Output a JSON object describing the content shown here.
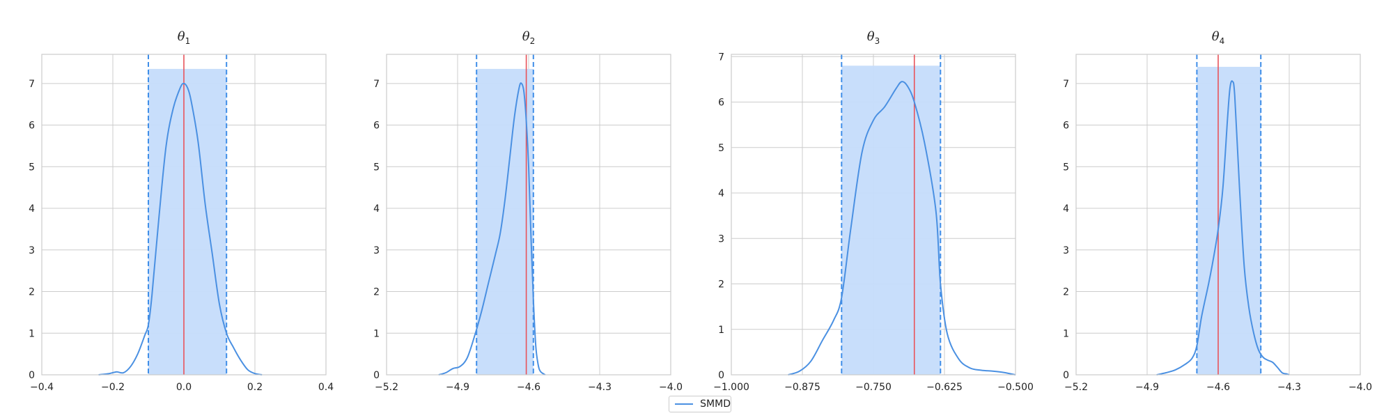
{
  "chart_data": [
    {
      "type": "line",
      "title_symbol": "θ",
      "title_sub": "1",
      "xlim": [
        -0.4,
        0.4
      ],
      "ylim": [
        0,
        7.7
      ],
      "xticks": [
        -0.4,
        -0.2,
        0.0,
        0.2,
        0.4
      ],
      "xtick_labels": [
        "−0.4",
        "−0.2",
        "0.0",
        "0.2",
        "0.4"
      ],
      "yticks": [
        0,
        1,
        2,
        3,
        4,
        5,
        6,
        7
      ],
      "ytick_labels": [
        "0",
        "1",
        "2",
        "3",
        "4",
        "5",
        "6",
        "7"
      ],
      "grid": true,
      "true_value": 0.0,
      "interval": [
        -0.1,
        0.12
      ],
      "interval_height": 7.35,
      "series": [
        {
          "name": "SMMD",
          "x": [
            -0.24,
            -0.21,
            -0.19,
            -0.17,
            -0.15,
            -0.13,
            -0.11,
            -0.1,
            -0.09,
            -0.07,
            -0.05,
            -0.03,
            -0.01,
            0.0,
            0.01,
            0.02,
            0.04,
            0.06,
            0.08,
            0.1,
            0.12,
            0.14,
            0.16,
            0.18,
            0.2,
            0.22
          ],
          "y": [
            0.0,
            0.03,
            0.07,
            0.05,
            0.2,
            0.5,
            0.95,
            1.2,
            1.9,
            3.8,
            5.5,
            6.4,
            6.9,
            7.0,
            6.9,
            6.6,
            5.6,
            4.1,
            2.9,
            1.7,
            1.0,
            0.65,
            0.35,
            0.12,
            0.03,
            0.0
          ]
        }
      ]
    },
    {
      "type": "line",
      "title_symbol": "θ",
      "title_sub": "2",
      "xlim": [
        -5.2,
        -4.0
      ],
      "ylim": [
        0,
        7.7
      ],
      "xticks": [
        -5.2,
        -4.9,
        -4.6,
        -4.3,
        -4.0
      ],
      "xtick_labels": [
        "−5.2",
        "−4.9",
        "−4.6",
        "−4.3",
        "−4.0"
      ],
      "yticks": [
        0,
        1,
        2,
        3,
        4,
        5,
        6,
        7
      ],
      "ytick_labels": [
        "0",
        "1",
        "2",
        "3",
        "4",
        "5",
        "6",
        "7"
      ],
      "grid": true,
      "true_value": -4.61,
      "interval": [
        -4.82,
        -4.58
      ],
      "interval_height": 7.35,
      "series": [
        {
          "name": "SMMD",
          "x": [
            -4.98,
            -4.95,
            -4.92,
            -4.89,
            -4.86,
            -4.83,
            -4.8,
            -4.77,
            -4.74,
            -4.72,
            -4.7,
            -4.68,
            -4.66,
            -4.64,
            -4.63,
            -4.62,
            -4.61,
            -4.6,
            -4.59,
            -4.58,
            -4.57,
            -4.56,
            -4.55,
            -4.53
          ],
          "y": [
            0.0,
            0.05,
            0.15,
            0.2,
            0.4,
            0.9,
            1.5,
            2.2,
            2.9,
            3.4,
            4.2,
            5.2,
            6.2,
            6.9,
            7.0,
            6.8,
            6.1,
            5.0,
            3.3,
            1.8,
            0.7,
            0.25,
            0.08,
            0.0
          ]
        }
      ]
    },
    {
      "type": "line",
      "title_symbol": "θ",
      "title_sub": "3",
      "xlim": [
        -1.0,
        -0.5
      ],
      "ylim": [
        0,
        7.05
      ],
      "xticks": [
        -1.0,
        -0.875,
        -0.75,
        -0.625,
        -0.5
      ],
      "xtick_labels": [
        "−1.000",
        "−0.875",
        "−0.750",
        "−0.625",
        "−0.500"
      ],
      "yticks": [
        0,
        1,
        2,
        3,
        4,
        5,
        6,
        7
      ],
      "ytick_labels": [
        "0",
        "1",
        "2",
        "3",
        "4",
        "5",
        "6",
        "7"
      ],
      "grid": true,
      "true_value": -0.678,
      "interval": [
        -0.806,
        -0.632
      ],
      "interval_height": 6.8,
      "series": [
        {
          "name": "SMMD",
          "x": [
            -0.9,
            -0.88,
            -0.86,
            -0.84,
            -0.82,
            -0.806,
            -0.79,
            -0.77,
            -0.75,
            -0.73,
            -0.71,
            -0.7,
            -0.69,
            -0.678,
            -0.66,
            -0.64,
            -0.632,
            -0.62,
            -0.6,
            -0.58,
            -0.56,
            -0.54,
            -0.52,
            -0.5
          ],
          "y": [
            0.0,
            0.08,
            0.3,
            0.75,
            1.2,
            1.7,
            3.2,
            4.9,
            5.6,
            5.9,
            6.3,
            6.45,
            6.35,
            6.0,
            5.1,
            3.6,
            2.0,
            0.9,
            0.35,
            0.15,
            0.1,
            0.08,
            0.05,
            0.0
          ]
        }
      ]
    },
    {
      "type": "line",
      "title_symbol": "θ",
      "title_sub": "4",
      "xlim": [
        -5.2,
        -4.0
      ],
      "ylim": [
        0,
        7.7
      ],
      "xticks": [
        -5.2,
        -4.9,
        -4.6,
        -4.3,
        -4.0
      ],
      "xtick_labels": [
        "−5.2",
        "−4.9",
        "−4.6",
        "−4.3",
        "−4.0"
      ],
      "yticks": [
        0,
        1,
        2,
        3,
        4,
        5,
        6,
        7
      ],
      "ytick_labels": [
        "0",
        "1",
        "2",
        "3",
        "4",
        "5",
        "6",
        "7"
      ],
      "grid": true,
      "true_value": -4.6,
      "interval": [
        -4.69,
        -4.42
      ],
      "interval_height": 7.4,
      "series": [
        {
          "name": "SMMD",
          "x": [
            -4.86,
            -4.82,
            -4.78,
            -4.74,
            -4.71,
            -4.69,
            -4.67,
            -4.64,
            -4.62,
            -4.6,
            -4.58,
            -4.56,
            -4.55,
            -4.54,
            -4.53,
            -4.51,
            -4.49,
            -4.47,
            -4.45,
            -4.43,
            -4.41,
            -4.39,
            -4.37,
            -4.35,
            -4.33,
            -4.31,
            -4.3
          ],
          "y": [
            0.0,
            0.05,
            0.12,
            0.25,
            0.4,
            0.7,
            1.4,
            2.2,
            2.8,
            3.5,
            4.5,
            6.2,
            6.9,
            7.05,
            6.7,
            4.5,
            2.6,
            1.6,
            1.0,
            0.6,
            0.42,
            0.35,
            0.3,
            0.18,
            0.05,
            0.02,
            0.0
          ]
        }
      ]
    }
  ],
  "legend": {
    "label": "SMMD",
    "placement": "bottom-center"
  },
  "colors": {
    "density": "#4a90e2",
    "interval_fill": "#c5dcfb",
    "interval_edge": "#3f8ee8",
    "true_value": "#e8535a",
    "grid": "#cccccc",
    "spine": "#cccccc",
    "text": "#222222"
  }
}
